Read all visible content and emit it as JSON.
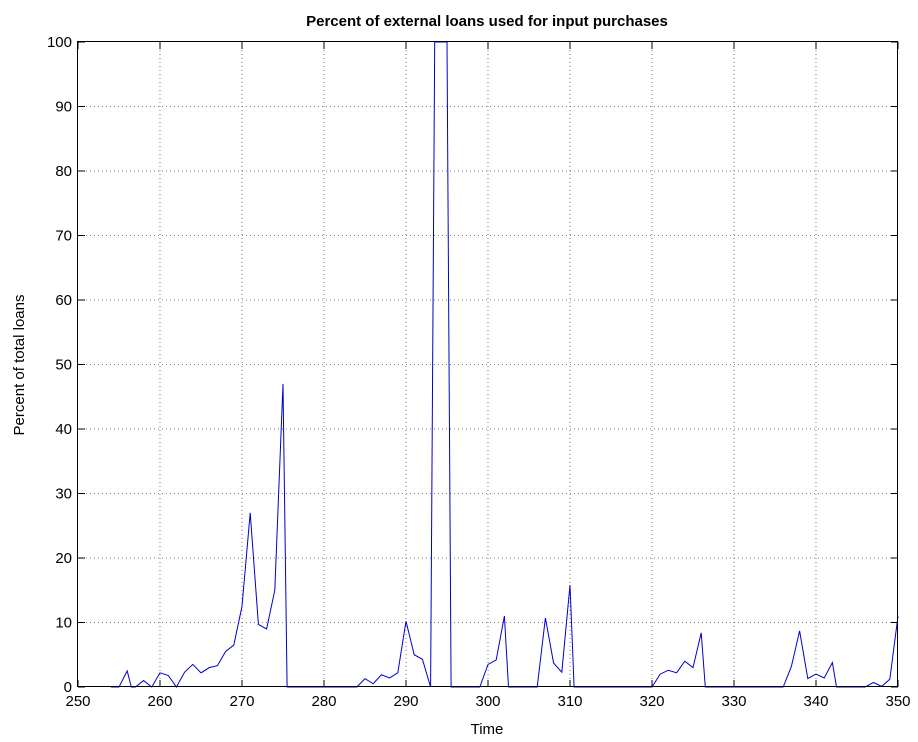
{
  "chart_data": {
    "type": "line",
    "title": "Percent of external loans used for input purchases",
    "xlabel": "Time",
    "ylabel": "Percent of total loans",
    "xlim": [
      250,
      350
    ],
    "ylim": [
      0,
      100
    ],
    "xticks": [
      250,
      260,
      270,
      280,
      290,
      300,
      310,
      320,
      330,
      340,
      350
    ],
    "yticks": [
      0,
      10,
      20,
      30,
      40,
      50,
      60,
      70,
      80,
      90,
      100
    ],
    "grid": true,
    "line_color": "#0000cc",
    "series": [
      {
        "x": [
          254,
          255,
          256,
          256.5,
          257,
          258,
          259,
          260,
          261,
          262,
          263,
          264,
          265,
          266,
          267,
          268,
          269,
          270,
          271,
          272,
          273,
          274,
          275,
          275.5,
          276,
          284,
          285,
          286,
          287,
          288,
          289,
          290,
          291,
          292,
          293,
          293.5,
          294,
          295,
          295.5,
          296,
          299,
          300,
          301,
          302,
          302.5,
          303,
          306,
          307,
          308,
          309,
          310,
          310.5,
          311,
          317,
          320,
          321,
          322,
          323,
          324,
          325,
          326,
          326.5,
          327,
          336,
          337,
          338,
          339,
          340,
          341,
          342,
          342.5,
          343,
          346,
          347,
          348,
          349,
          350
        ],
        "y": [
          0,
          0,
          2.5,
          0,
          0,
          1,
          0,
          2.2,
          1.8,
          0,
          2.3,
          3.5,
          2.2,
          3,
          3.3,
          5.5,
          6.5,
          12.5,
          27,
          9.7,
          9,
          15,
          47,
          0,
          0,
          0,
          1.3,
          0.5,
          1.9,
          1.4,
          2.2,
          10.2,
          5,
          4.3,
          0,
          100,
          100,
          100,
          0,
          0,
          0,
          3.5,
          4.2,
          11,
          0,
          0,
          0,
          10.7,
          3.7,
          2.3,
          15.8,
          0,
          0,
          0,
          0,
          2,
          2.6,
          2.2,
          4,
          3,
          8.4,
          0,
          0,
          0,
          3.2,
          8.7,
          1.3,
          2,
          1.4,
          3.8,
          0,
          0,
          0,
          0.7,
          0.1,
          1.2,
          11
        ]
      }
    ]
  }
}
